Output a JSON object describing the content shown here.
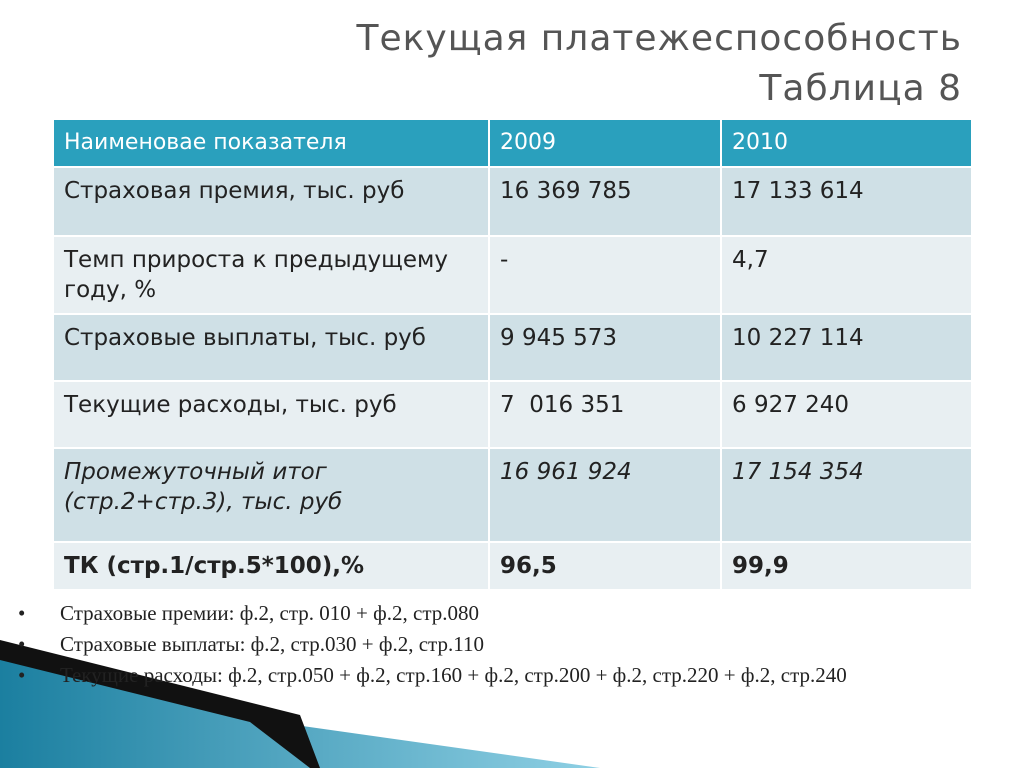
{
  "header": {
    "title": "Текущая платежеспособность",
    "subtitle": "Таблица 8"
  },
  "table": {
    "columns": [
      "Наименовае показателя",
      "2009",
      "2010"
    ],
    "rows": [
      [
        "Страховая премия, тыс. руб",
        "16 369 785",
        "17 133 614"
      ],
      [
        "Темп прироста к предыдущему году, %",
        "-",
        "4,7"
      ],
      [
        "Страховые выплаты, тыс. руб",
        "9 945 573",
        "10 227 114"
      ],
      [
        "Текущие расходы, тыс. руб",
        "7  016 351",
        "6 927 240"
      ],
      [
        "Промежуточный итог (стр.2+стр.3), тыс. руб",
        "16 961 924",
        "17 154 354"
      ],
      [
        "ТК (стр.1/стр.5*100),%",
        "96,5",
        "99,9"
      ]
    ]
  },
  "notes": [
    "Страховые премии: ф.2, стр. 010 + ф.2, стр.080",
    "Страховые выплаты: ф.2, стр.030 + ф.2, стр.110",
    "Текущие расходы: ф.2, стр.050 + ф.2, стр.160 + ф.2, стр.200 + ф.2, стр.220 + ф.2, стр.240"
  ]
}
